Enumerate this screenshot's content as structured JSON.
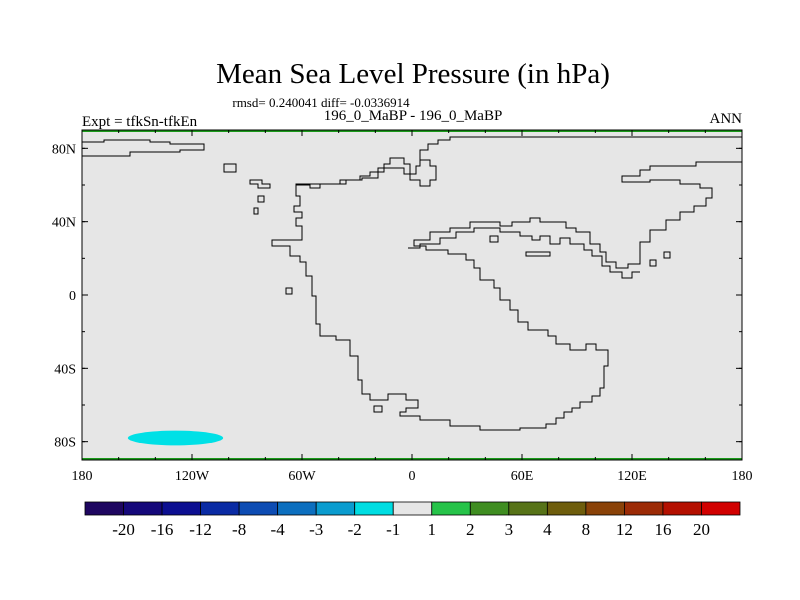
{
  "chart_data": {
    "type": "heatmap",
    "title": "Mean Sea Level Pressure (in hPa)",
    "stats_line": "rmsd= 0.240041 diff= -0.0336914",
    "left_label": "Expt = tfkSn-tfkEn",
    "center_label": "196_0_MaBP - 196_0_MaBP",
    "right_label": "ANN",
    "x_ticks": [
      "180",
      "120W",
      "60W",
      "0",
      "60E",
      "120E",
      "180"
    ],
    "y_ticks": [
      "80N",
      "40N",
      "0",
      "40S",
      "80S"
    ],
    "xlim": [
      -180,
      180
    ],
    "ylim": [
      -90,
      90
    ],
    "background_color": "#e6e6e6",
    "anomaly_region": {
      "lon_range": [
        -155,
        -103
      ],
      "lat_range": [
        -82,
        -74
      ],
      "value_bin": "-2 to -1",
      "color": "#00e0e6"
    },
    "colorbar": {
      "labels": [
        "-20",
        "-16",
        "-12",
        "-8",
        "-4",
        "-3",
        "-2",
        "-1",
        "1",
        "2",
        "3",
        "4",
        "8",
        "12",
        "16",
        "20"
      ],
      "colors": [
        "#1e0660",
        "#15087a",
        "#0c0f91",
        "#0a2ba4",
        "#0d4cb3",
        "#0c6fbf",
        "#0a9ccf",
        "#00dde2",
        "#e6e6e6",
        "#26c349",
        "#3f8d21",
        "#577318",
        "#6e5d0c",
        "#8a4208",
        "#9c2b06",
        "#b41000",
        "#d10000"
      ]
    }
  }
}
